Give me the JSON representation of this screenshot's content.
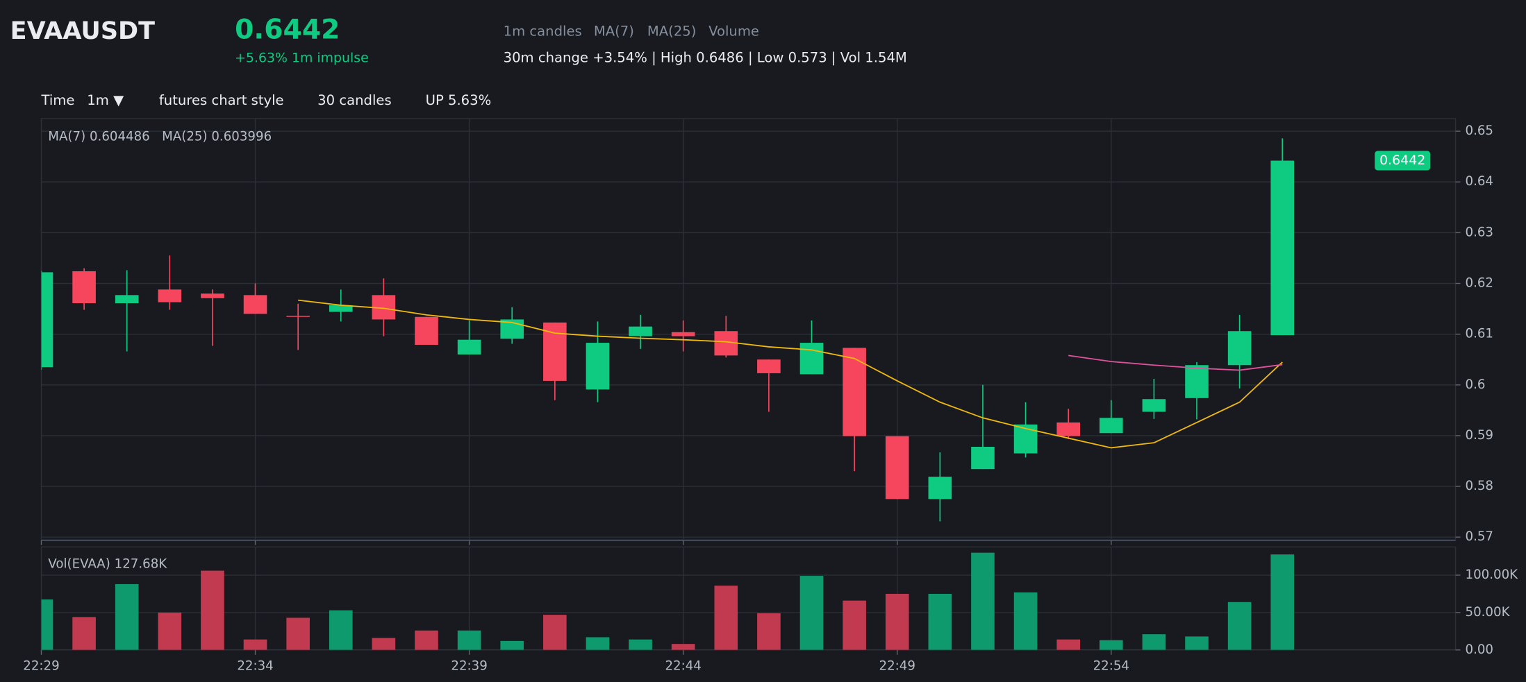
{
  "header": {
    "symbol": "EVAAUSDT",
    "price": "0.6442",
    "impulse": "+5.63% 1m impulse",
    "stats": "30m change +3.54% | High 0.6486 | Low 0.573 | Vol 1.54M"
  },
  "toolbar": {
    "time_label": "Time",
    "interval": "1m ▼",
    "style": "futures chart style",
    "count": "30 candles",
    "direction": "UP 5.63%"
  },
  "chart_data": {
    "type": "candlestick",
    "title": "EVAAUSDT",
    "series_name": "1m candles",
    "categories": [
      "22:29",
      null,
      null,
      null,
      null,
      "22:34",
      null,
      null,
      null,
      null,
      "22:39",
      null,
      null,
      null,
      null,
      "22:44",
      null,
      null,
      null,
      null,
      "22:49",
      null,
      null,
      null,
      null,
      "22:54",
      null,
      null,
      null,
      null
    ],
    "open": [
      0.6035,
      0.6224,
      0.6161,
      0.6188,
      0.618,
      0.6177,
      0.6136,
      0.6144,
      0.6177,
      0.6134,
      0.606,
      0.6091,
      0.6123,
      0.5991,
      0.6096,
      0.6104,
      0.6106,
      0.605,
      0.6021,
      0.6073,
      0.5899,
      0.5775,
      0.5834,
      0.5865,
      0.5926,
      0.5905,
      0.5947,
      0.5974,
      0.6039,
      0.6098
    ],
    "high": [
      0.6225,
      0.623,
      0.6226,
      0.6255,
      0.6188,
      0.62,
      0.616,
      0.6188,
      0.621,
      0.6134,
      0.6127,
      0.6153,
      0.6123,
      0.6125,
      0.6138,
      0.6127,
      0.6136,
      0.605,
      0.6127,
      0.6073,
      0.5899,
      0.5867,
      0.6,
      0.5966,
      0.5953,
      0.597,
      0.6012,
      0.6045,
      0.6138,
      0.6486
    ],
    "low": [
      0.603,
      0.6148,
      0.6066,
      0.6148,
      0.6077,
      0.614,
      0.6069,
      0.6125,
      0.6096,
      0.6079,
      0.606,
      0.6081,
      0.597,
      0.5966,
      0.6071,
      0.6066,
      0.6054,
      0.5947,
      0.6021,
      0.583,
      0.5775,
      0.5731,
      0.5834,
      0.5857,
      0.5893,
      0.5905,
      0.5933,
      0.5932,
      0.5993,
      0.6098
    ],
    "close": [
      0.6222,
      0.6161,
      0.6177,
      0.6163,
      0.6171,
      0.614,
      0.6134,
      0.6157,
      0.6129,
      0.6079,
      0.6089,
      0.6129,
      0.6008,
      0.6083,
      0.6115,
      0.6096,
      0.6058,
      0.6023,
      0.6083,
      0.5899,
      0.5775,
      0.5819,
      0.5878,
      0.5922,
      0.5899,
      0.5935,
      0.5972,
      0.6039,
      0.6106,
      0.6442
    ],
    "up_color": "#0ecb81",
    "down_color": "#f6465d",
    "lines": [
      {
        "name": "MA(7)",
        "label": "MA(7) 0.604486",
        "color": "#f0b90b",
        "values": [
          null,
          null,
          null,
          null,
          null,
          null,
          0.6167,
          0.6157,
          0.6151,
          0.6138,
          0.6129,
          0.6123,
          0.6102,
          0.6096,
          0.6092,
          0.6089,
          0.6085,
          0.6075,
          0.6069,
          0.6052,
          0.6008,
          0.5966,
          0.5935,
          0.5914,
          0.5895,
          0.5876,
          0.5886,
          0.5926,
          0.5966,
          0.604486
        ]
      },
      {
        "name": "MA(25)",
        "label": "MA(25) 0.603996",
        "color": "#e0529c",
        "values": [
          null,
          null,
          null,
          null,
          null,
          null,
          null,
          null,
          null,
          null,
          null,
          null,
          null,
          null,
          null,
          null,
          null,
          null,
          null,
          null,
          null,
          null,
          null,
          null,
          0.6058,
          0.6046,
          0.6039,
          0.6033,
          0.6029,
          0.603996
        ]
      }
    ],
    "ylim": [
      0.5694,
      0.6525
    ],
    "yticks": [
      0.57,
      0.58,
      0.59,
      0.6,
      0.61,
      0.62,
      0.63,
      0.64,
      0.65
    ],
    "grid": true,
    "volume": {
      "name": "Volume",
      "label": "Vol(EVAA) 127.68K",
      "up_color": "#0e9a6c",
      "down_color": "#c23a4f",
      "values": [
        67500,
        44000,
        88000,
        50000,
        106000,
        14000,
        43000,
        53000,
        16000,
        26000,
        26000,
        12000,
        47000,
        17000,
        14000,
        8000,
        86000,
        49000,
        99000,
        66000,
        75000,
        75000,
        130000,
        77000,
        14000,
        13000,
        21000,
        18000,
        64000,
        127680
      ],
      "ylim": [
        0,
        137700
      ],
      "yticks": [
        {
          "value": 0,
          "label": "0.00"
        },
        {
          "value": 50000,
          "label": "50.00K"
        },
        {
          "value": 100000,
          "label": "100.00K"
        }
      ]
    }
  }
}
